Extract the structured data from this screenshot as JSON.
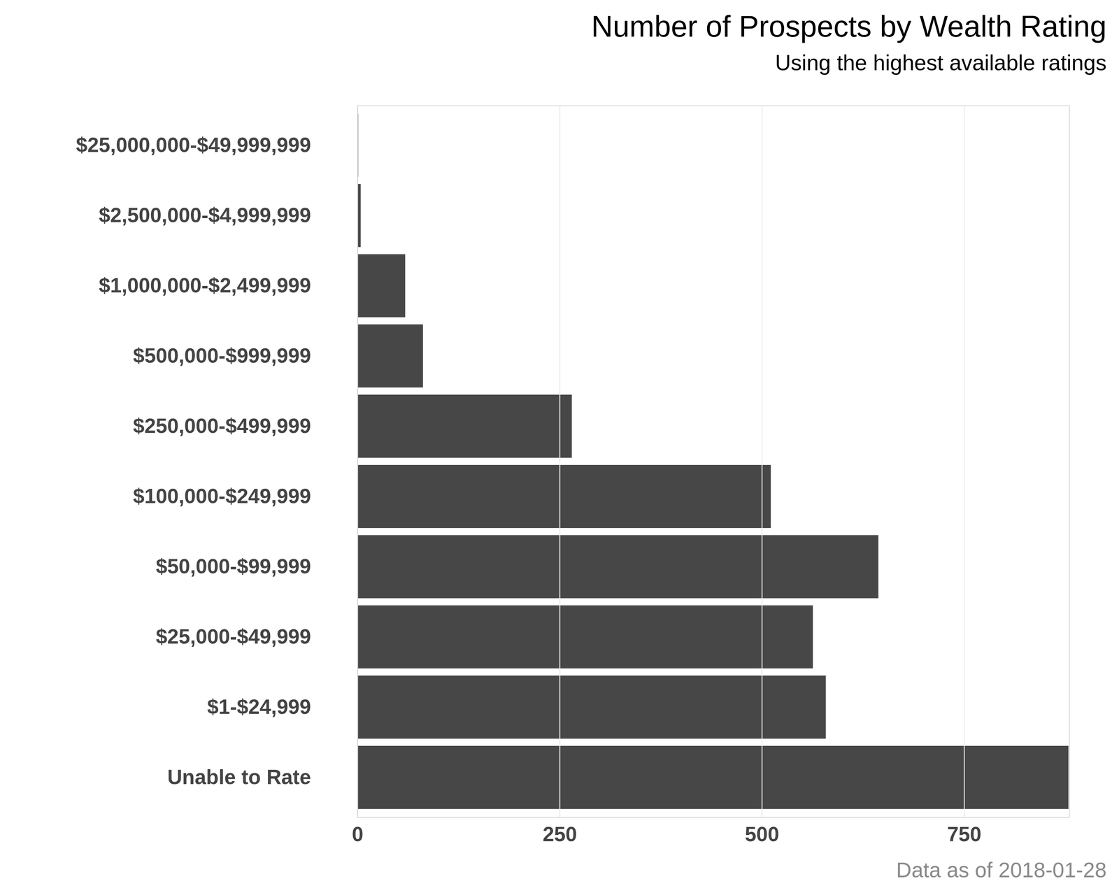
{
  "chart_data": {
    "type": "bar",
    "title": "Number of Prospects by Wealth Rating",
    "subtitle": "Using the highest available ratings",
    "caption": "Data as of 2018-01-28",
    "orientation": "horizontal",
    "categories": [
      "$25,000,000-$49,999,999",
      "$2,500,000-$4,999,999",
      "$1,000,000-$2,499,999",
      "$500,000-$999,999",
      "$250,000-$499,999",
      "$100,000-$249,999",
      "$50,000-$99,999",
      "$25,000-$49,999",
      "$1-$24,999",
      "Unable to Rate"
    ],
    "values": [
      1,
      4,
      59,
      81,
      265,
      511,
      644,
      563,
      579,
      879
    ],
    "color": "#474747",
    "xlim": [
      0,
      880
    ],
    "xticks": [
      0,
      250,
      500,
      750
    ],
    "grid": true
  }
}
